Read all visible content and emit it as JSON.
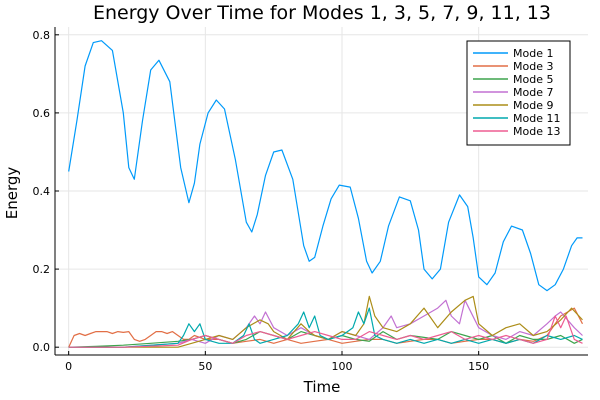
{
  "chart_data": {
    "type": "line",
    "title": "Energy Over Time for Modes 1, 3, 5, 7, 9, 11, 13",
    "xlabel": "Time",
    "ylabel": "Energy",
    "xlim": [
      -5,
      190
    ],
    "ylim": [
      -0.02,
      0.82
    ],
    "xticks": [
      0,
      50,
      100,
      150
    ],
    "yticks": [
      0.0,
      0.2,
      0.4,
      0.6,
      0.8
    ],
    "xtick_labels": [
      "0",
      "50",
      "100",
      "150"
    ],
    "ytick_labels": [
      "0.0",
      "0.2",
      "0.4",
      "0.6",
      "0.8"
    ],
    "grid": true,
    "legend_position": "top-right",
    "series": [
      {
        "name": "Mode 1",
        "color": "#009AFA",
        "x": [
          0,
          3,
          6,
          9,
          12,
          16,
          20,
          22,
          24,
          27,
          30,
          33,
          37,
          41,
          44,
          46,
          48,
          51,
          54,
          57,
          61,
          65,
          67,
          69,
          72,
          75,
          78,
          82,
          86,
          88,
          90,
          93,
          96,
          99,
          103,
          106,
          109,
          111,
          114,
          117,
          121,
          125,
          128,
          130,
          133,
          136,
          139,
          143,
          146,
          148,
          150,
          153,
          156,
          159,
          162,
          166,
          169,
          172,
          175,
          178,
          181,
          184,
          186,
          188
        ],
        "y": [
          0.45,
          0.58,
          0.72,
          0.78,
          0.785,
          0.76,
          0.6,
          0.46,
          0.43,
          0.58,
          0.71,
          0.735,
          0.68,
          0.46,
          0.37,
          0.42,
          0.52,
          0.6,
          0.633,
          0.61,
          0.48,
          0.32,
          0.295,
          0.34,
          0.44,
          0.5,
          0.505,
          0.43,
          0.26,
          0.22,
          0.23,
          0.31,
          0.38,
          0.415,
          0.41,
          0.33,
          0.22,
          0.19,
          0.22,
          0.31,
          0.385,
          0.375,
          0.3,
          0.2,
          0.175,
          0.2,
          0.32,
          0.39,
          0.36,
          0.28,
          0.18,
          0.16,
          0.19,
          0.27,
          0.31,
          0.3,
          0.24,
          0.16,
          0.145,
          0.16,
          0.2,
          0.26,
          0.28,
          0.28
        ]
      },
      {
        "name": "Mode 3",
        "color": "#E26F46",
        "x": [
          0,
          2,
          4,
          6,
          8,
          10,
          12,
          14,
          16,
          18,
          20,
          22,
          24,
          26,
          28,
          30,
          32,
          34,
          36,
          38,
          40,
          42,
          44,
          46,
          48,
          50,
          55,
          60,
          65,
          70,
          75,
          80,
          85,
          90,
          95,
          100,
          105,
          110,
          115,
          120,
          125,
          130,
          135,
          140,
          145,
          150,
          155,
          160,
          165,
          170,
          175,
          180,
          185,
          188
        ],
        "y": [
          0,
          0.03,
          0.035,
          0.03,
          0.035,
          0.04,
          0.04,
          0.04,
          0.035,
          0.04,
          0.038,
          0.04,
          0.02,
          0.015,
          0.02,
          0.03,
          0.04,
          0.04,
          0.035,
          0.04,
          0.03,
          0.02,
          0.02,
          0.03,
          0.025,
          0.02,
          0.02,
          0.01,
          0.015,
          0.02,
          0.01,
          0.02,
          0.01,
          0.015,
          0.02,
          0.01,
          0.015,
          0.02,
          0.02,
          0.01,
          0.015,
          0.02,
          0.02,
          0.01,
          0.015,
          0.02,
          0.02,
          0.01,
          0.02,
          0.015,
          0.03,
          0.08,
          0.1,
          0.06
        ]
      },
      {
        "name": "Mode 5",
        "color": "#3DA44D",
        "x": [
          0,
          10,
          20,
          30,
          40,
          45,
          50,
          55,
          60,
          65,
          70,
          75,
          80,
          85,
          90,
          95,
          100,
          105,
          110,
          115,
          120,
          125,
          130,
          135,
          140,
          145,
          150,
          155,
          160,
          165,
          170,
          175,
          180,
          185,
          188
        ],
        "y": [
          0,
          0.002,
          0.005,
          0.01,
          0.015,
          0.02,
          0.03,
          0.02,
          0.01,
          0.02,
          0.04,
          0.03,
          0.02,
          0.04,
          0.03,
          0.02,
          0.03,
          0.02,
          0.015,
          0.04,
          0.02,
          0.03,
          0.025,
          0.02,
          0.04,
          0.03,
          0.02,
          0.03,
          0.01,
          0.03,
          0.02,
          0.02,
          0.03,
          0.01,
          0.02
        ]
      },
      {
        "name": "Mode 7",
        "color": "#C271D2",
        "x": [
          0,
          20,
          40,
          45,
          50,
          55,
          60,
          65,
          68,
          70,
          72,
          75,
          80,
          85,
          90,
          95,
          100,
          105,
          110,
          115,
          118,
          120,
          125,
          130,
          135,
          138,
          140,
          143,
          145,
          150,
          155,
          160,
          165,
          170,
          175,
          178,
          180,
          185,
          188
        ],
        "y": [
          0,
          0,
          0.01,
          0.02,
          0.01,
          0.03,
          0.02,
          0.05,
          0.08,
          0.06,
          0.09,
          0.05,
          0.03,
          0.05,
          0.03,
          0.02,
          0.04,
          0.03,
          0.02,
          0.05,
          0.08,
          0.05,
          0.06,
          0.08,
          0.1,
          0.12,
          0.08,
          0.06,
          0.12,
          0.05,
          0.03,
          0.02,
          0.04,
          0.03,
          0.06,
          0.08,
          0.09,
          0.05,
          0.03
        ]
      },
      {
        "name": "Mode 9",
        "color": "#AC8D18",
        "x": [
          0,
          20,
          40,
          45,
          50,
          55,
          60,
          65,
          70,
          73,
          75,
          80,
          85,
          88,
          90,
          95,
          100,
          105,
          108,
          110,
          112,
          115,
          120,
          125,
          130,
          135,
          140,
          145,
          148,
          150,
          155,
          160,
          165,
          170,
          175,
          180,
          184,
          188
        ],
        "y": [
          0,
          0,
          0,
          0.01,
          0.02,
          0.03,
          0.02,
          0.05,
          0.07,
          0.06,
          0.04,
          0.02,
          0.06,
          0.04,
          0.03,
          0.02,
          0.04,
          0.03,
          0.06,
          0.13,
          0.08,
          0.05,
          0.04,
          0.06,
          0.1,
          0.05,
          0.09,
          0.12,
          0.13,
          0.06,
          0.03,
          0.05,
          0.06,
          0.03,
          0.04,
          0.07,
          0.1,
          0.07
        ]
      },
      {
        "name": "Mode 11",
        "color": "#00A9AD",
        "x": [
          0,
          20,
          40,
          42,
          44,
          46,
          48,
          50,
          55,
          60,
          64,
          66,
          68,
          70,
          75,
          80,
          84,
          86,
          88,
          90,
          92,
          95,
          100,
          104,
          106,
          108,
          110,
          112,
          115,
          120,
          125,
          130,
          135,
          140,
          145,
          150,
          155,
          160,
          165,
          170,
          175,
          180,
          185,
          188
        ],
        "y": [
          0,
          0,
          0.01,
          0.03,
          0.06,
          0.04,
          0.06,
          0.02,
          0.01,
          0.01,
          0.03,
          0.06,
          0.02,
          0.01,
          0.02,
          0.03,
          0.06,
          0.09,
          0.05,
          0.08,
          0.03,
          0.02,
          0.03,
          0.05,
          0.09,
          0.06,
          0.1,
          0.03,
          0.02,
          0.01,
          0.02,
          0.01,
          0.02,
          0.01,
          0.02,
          0.01,
          0.02,
          0.01,
          0.02,
          0.01,
          0.03,
          0.02,
          0.03,
          0.02
        ]
      },
      {
        "name": "Mode 13",
        "color": "#ED5D92",
        "x": [
          0,
          20,
          40,
          45,
          50,
          55,
          60,
          65,
          70,
          75,
          80,
          85,
          90,
          95,
          100,
          105,
          110,
          115,
          120,
          125,
          130,
          135,
          140,
          145,
          150,
          155,
          160,
          165,
          170,
          175,
          178,
          180,
          182,
          185,
          188
        ],
        "y": [
          0,
          0,
          0.005,
          0.02,
          0.03,
          0.02,
          0.01,
          0.03,
          0.04,
          0.03,
          0.02,
          0.03,
          0.04,
          0.03,
          0.02,
          0.02,
          0.04,
          0.03,
          0.02,
          0.03,
          0.02,
          0.03,
          0.04,
          0.02,
          0.03,
          0.02,
          0.03,
          0.02,
          0.01,
          0.02,
          0.08,
          0.05,
          0.08,
          0.02,
          0.01
        ]
      }
    ]
  }
}
